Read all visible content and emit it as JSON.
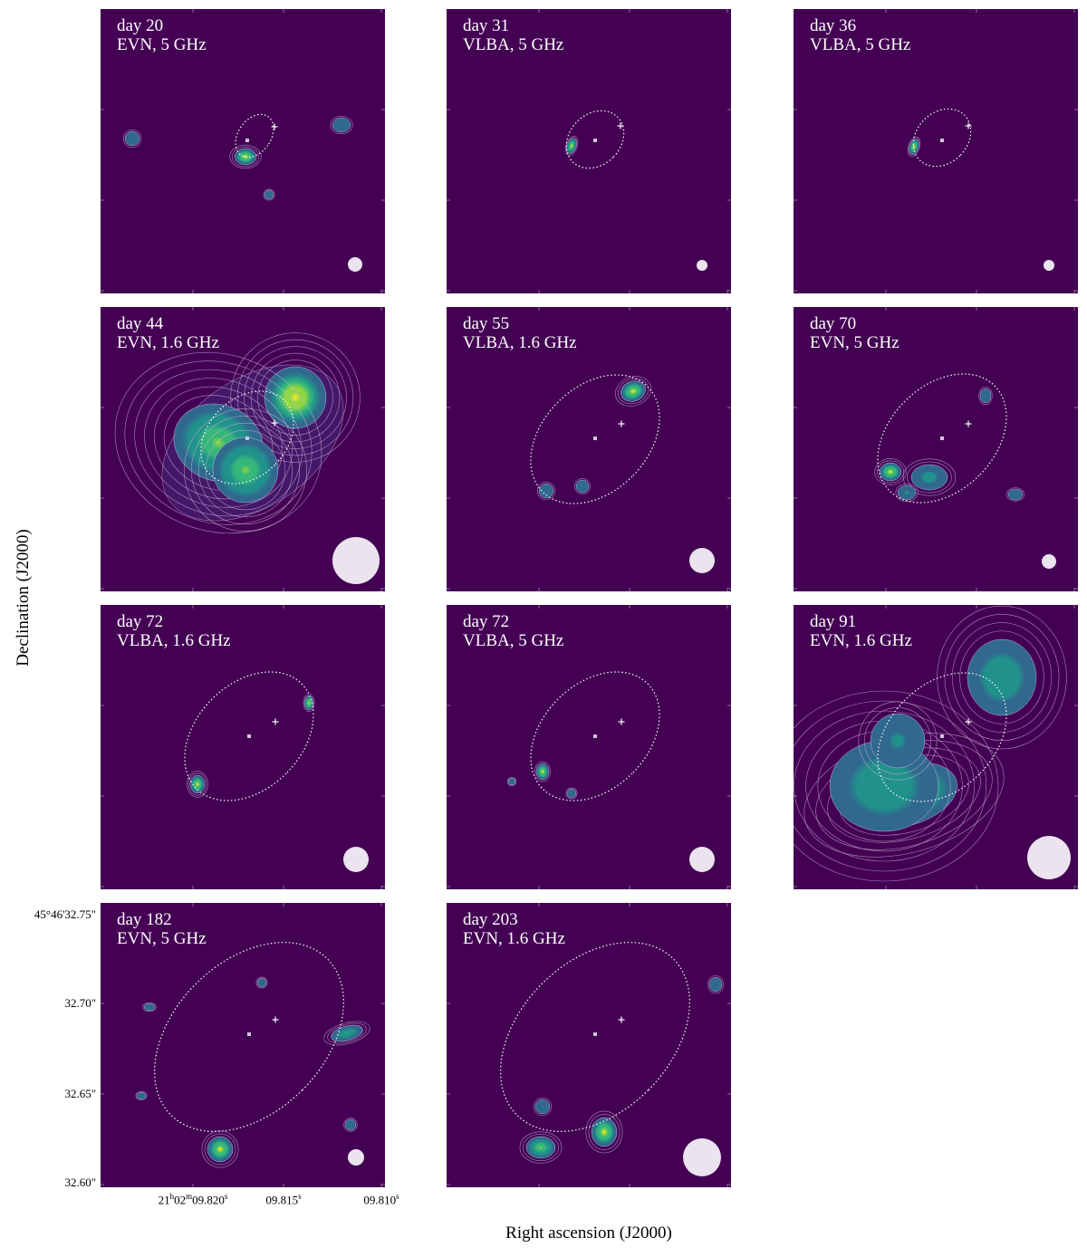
{
  "axes": {
    "xlabel": "Right ascension (J2000)",
    "ylabel": "Declination (J2000)",
    "dec_ticks": [
      "45°46'32.75\"",
      "32.70\"",
      "32.65\"",
      "32.60\""
    ],
    "ra_ticks": [
      "21h02m09.820s",
      "09.815s",
      "09.810s"
    ]
  },
  "colors": {
    "background": "#440154",
    "colormap": [
      "#440154",
      "#31688e",
      "#21918c",
      "#35b779",
      "#90d743",
      "#fde725"
    ],
    "marker": "#ffffff",
    "beam": "#ebe3ee"
  },
  "panels": [
    {
      "epoch": "day 20",
      "array": "EVN, 5 GHz"
    },
    {
      "epoch": "day 31",
      "array": "VLBA, 5 GHz"
    },
    {
      "epoch": "day 36",
      "array": "VLBA, 5 GHz"
    },
    {
      "epoch": "day 44",
      "array": "EVN, 1.6 GHz"
    },
    {
      "epoch": "day 55",
      "array": "VLBA, 1.6 GHz"
    },
    {
      "epoch": "day 70",
      "array": "EVN, 5 GHz"
    },
    {
      "epoch": "day 72",
      "array": "VLBA, 1.6 GHz"
    },
    {
      "epoch": "day 72",
      "array": "VLBA, 5 GHz"
    },
    {
      "epoch": "day 91",
      "array": "EVN, 1.6 GHz"
    },
    {
      "epoch": "day 182",
      "array": "EVN, 5 GHz"
    },
    {
      "epoch": "day 203",
      "array": "EVN, 1.6 GHz"
    }
  ]
}
